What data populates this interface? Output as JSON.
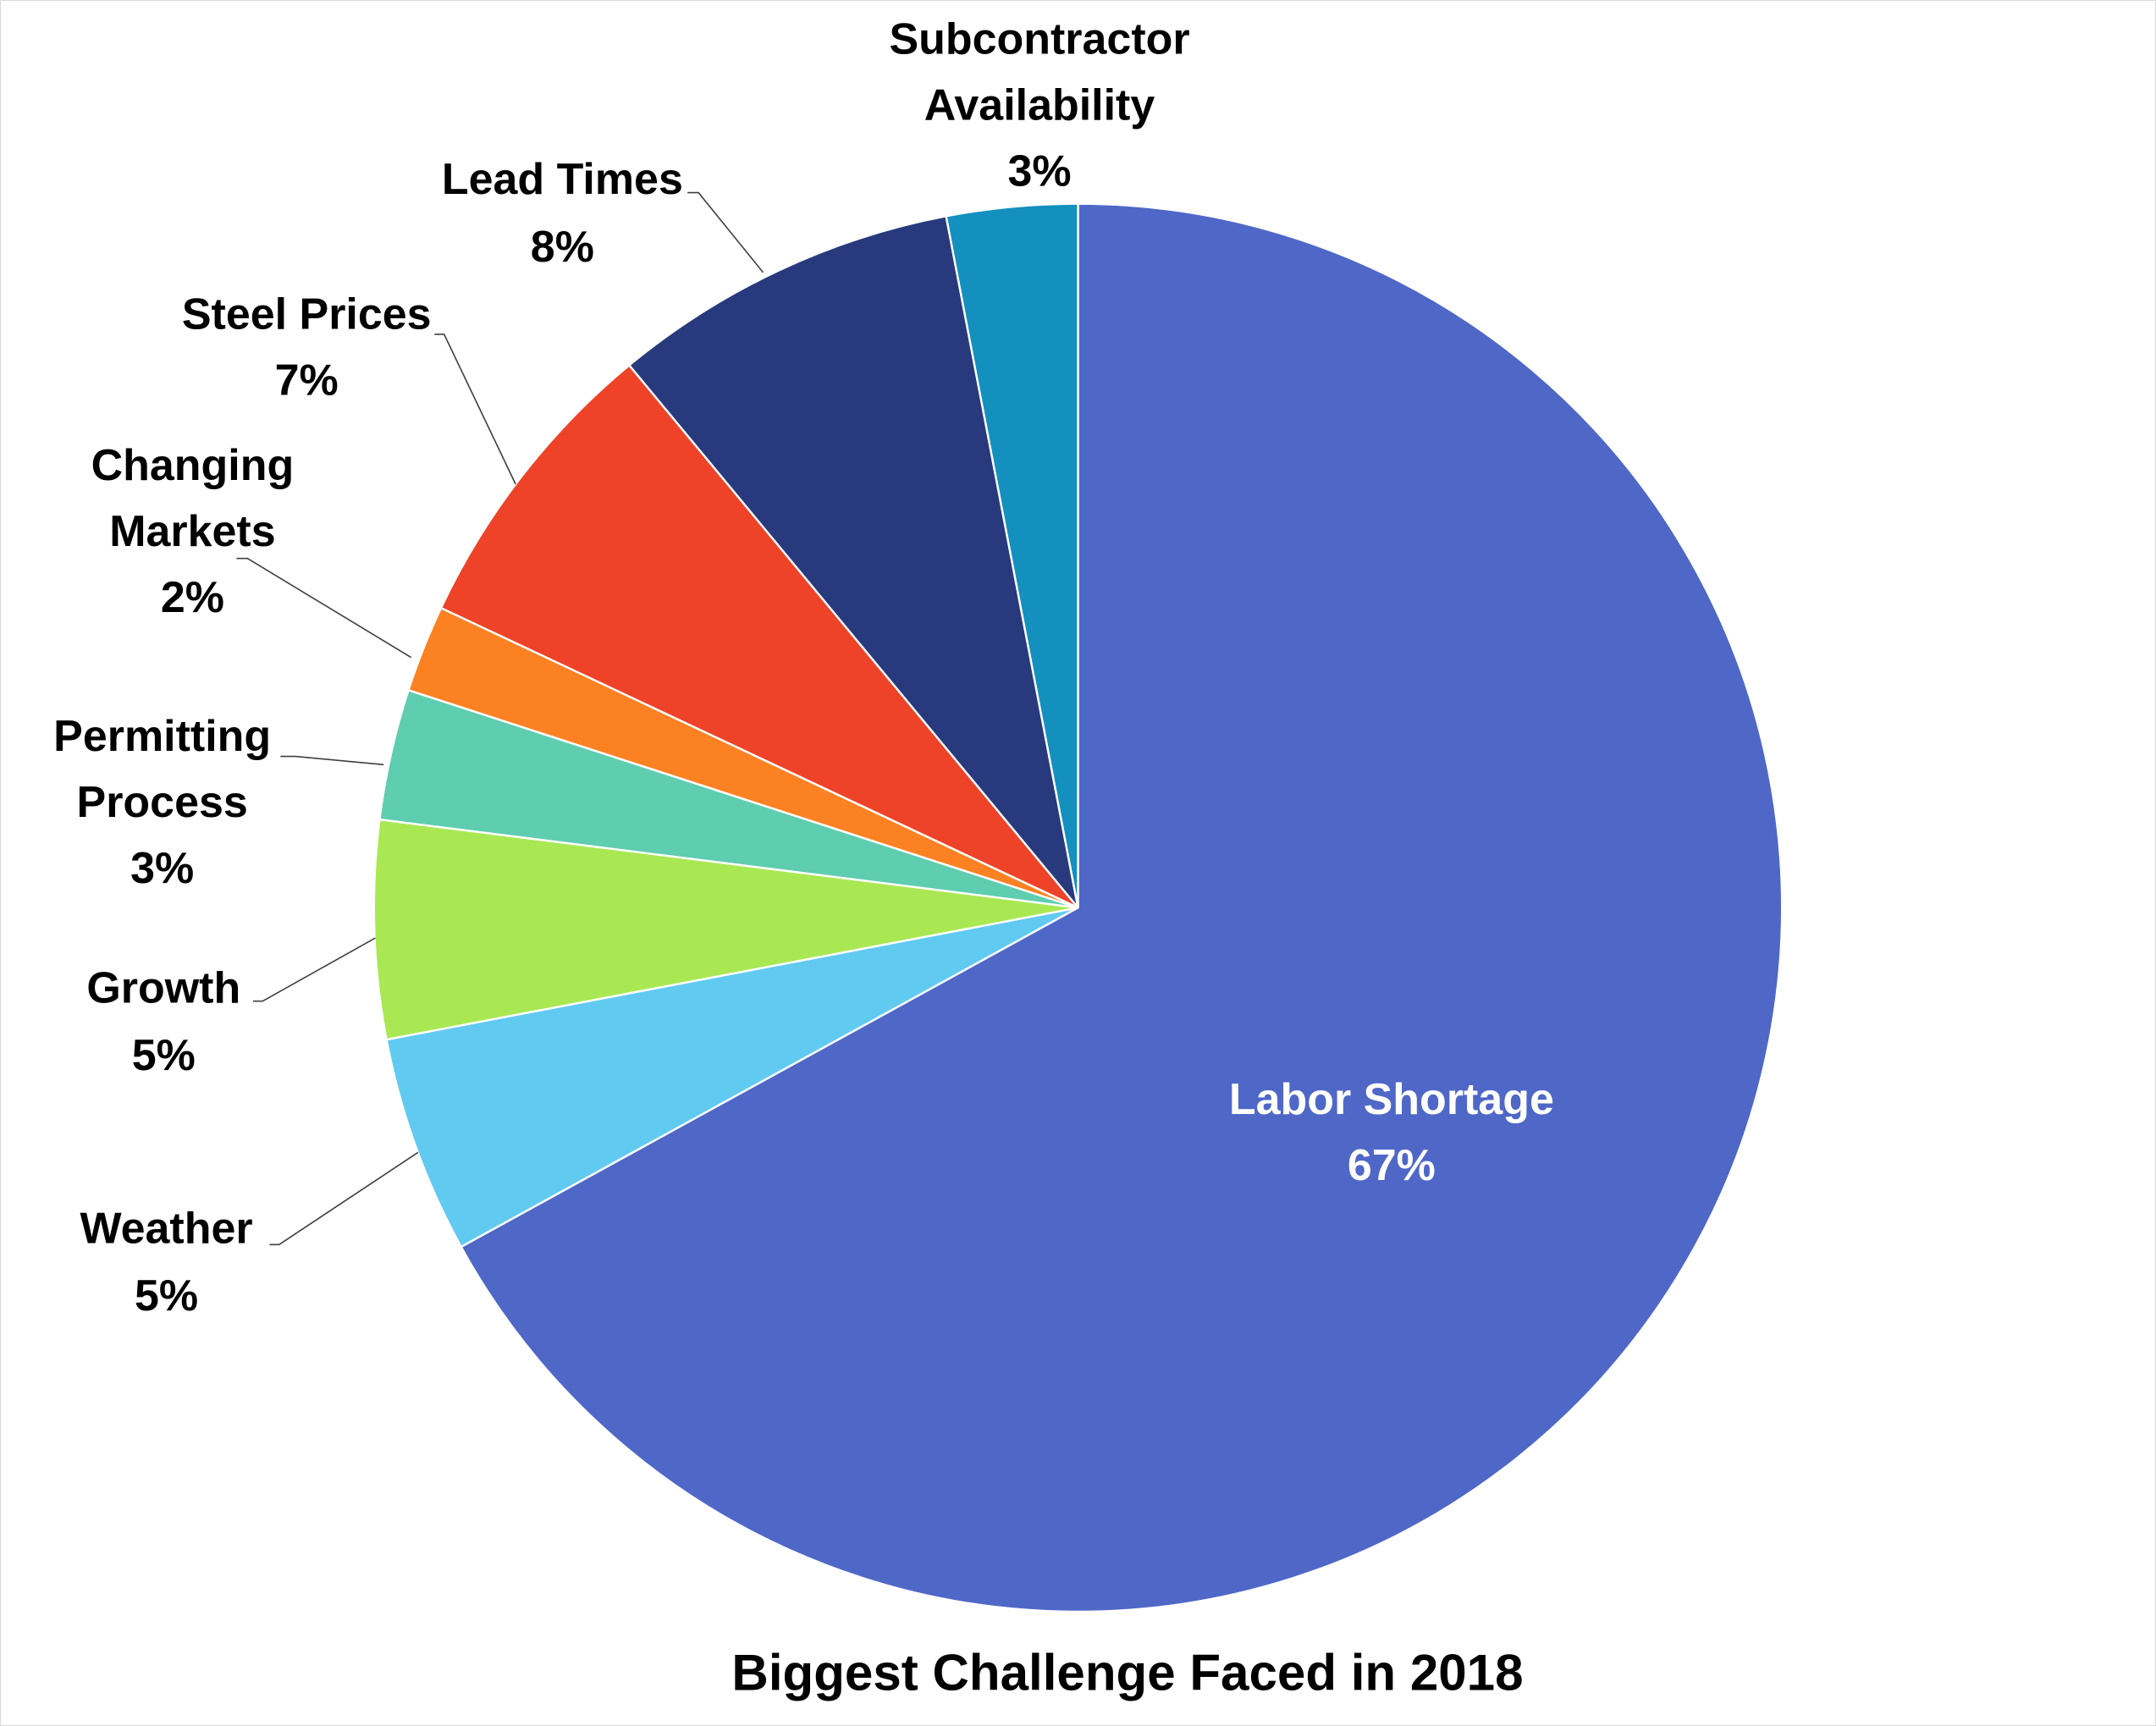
{
  "chart_data": {
    "type": "pie",
    "title": "Biggest Challenge Faced in 2018",
    "start_angle_deg": 0,
    "direction": "clockwise",
    "slices": [
      {
        "label": "Labor Shortage",
        "value": 67,
        "display": "67%",
        "color": "#4F67C7"
      },
      {
        "label": "Weather",
        "value": 5,
        "display": "5%",
        "color": "#61CAF1"
      },
      {
        "label": "Growth",
        "value": 5,
        "display": "5%",
        "color": "#A9E853"
      },
      {
        "label": "Permitting Process",
        "value": 3,
        "display": "3%",
        "color": "#5ECDB0"
      },
      {
        "label": "Changing Markets",
        "value": 2,
        "display": "2%",
        "color": "#FC8123"
      },
      {
        "label": "Steel Prices",
        "value": 7,
        "display": "7%",
        "color": "#EE4328"
      },
      {
        "label": "Lead Times",
        "value": 8,
        "display": "8%",
        "color": "#283A7D"
      },
      {
        "label": "Subcontractor Availability",
        "value": 3,
        "display": "3%",
        "color": "#1390BE"
      }
    ],
    "categories": [
      "Labor Shortage",
      "Weather",
      "Growth",
      "Permitting Process",
      "Changing Markets",
      "Steel Prices",
      "Lead Times",
      "Subcontractor Availability"
    ],
    "values": [
      67,
      5,
      5,
      3,
      2,
      7,
      8,
      3
    ],
    "legend": "none (data labels with category name and percentage)"
  },
  "labels": {
    "labor_line1": "Labor Shortage",
    "labor_pct": "67%",
    "weather_line1": "Weather",
    "weather_pct": "5%",
    "growth_line1": "Growth",
    "growth_pct": "5%",
    "permitting_line1": "Permitting",
    "permitting_line2": "Process",
    "permitting_pct": "3%",
    "changing_line1": "Changing",
    "changing_line2": "Markets",
    "changing_pct": "2%",
    "steel_line1": "Steel Prices",
    "steel_pct": "7%",
    "lead_line1": "Lead Times",
    "lead_pct": "8%",
    "sub_line1": "Subcontractor",
    "sub_line2": "Availability",
    "sub_pct": "3%"
  }
}
